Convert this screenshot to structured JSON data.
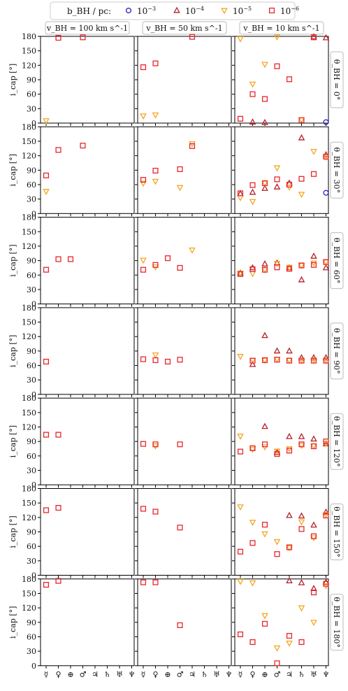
{
  "chart_data": {
    "type": "scatter",
    "legend": {
      "title": "b_BH / pc:",
      "placement": "top",
      "entries": [
        {
          "series": "1e-3",
          "marker": "circle",
          "color": "#1f1fbf",
          "label_base": "10",
          "label_exp": "−3"
        },
        {
          "series": "1e-4",
          "marker": "triangle-up",
          "color": "#b3222a",
          "label_base": "10",
          "label_exp": "−4"
        },
        {
          "series": "1e-5",
          "marker": "triangle-down",
          "color": "#f5a623",
          "label_base": "10",
          "label_exp": "−5"
        },
        {
          "series": "1e-6",
          "marker": "square",
          "color": "#e8262b",
          "label_base": "10",
          "label_exp": "−6"
        }
      ]
    },
    "column_headers": [
      "v_BH = 100 km s^-1",
      "v_BH = 50 km s^-1",
      "v_BH = 10 km s^-1"
    ],
    "row_labels": [
      "θ_BH = 0°",
      "θ_BH = 30°",
      "θ_BH = 60°",
      "θ_BH = 90°",
      "θ_BH = 120°",
      "θ_BH = 150°",
      "θ_BH = 180°"
    ],
    "ylabel": "i_cap [°]",
    "ylim": [
      0,
      180
    ],
    "yticks": [
      "0",
      "30",
      "60",
      "90",
      "120",
      "150",
      "180"
    ],
    "x_categories": [
      "☿",
      "♀",
      "⊕",
      "♂",
      "♃",
      "♄",
      "♅",
      "♆"
    ],
    "panels": [
      [
        {
          "1e-5": [
            [
              0,
              5
            ]
          ],
          "1e-6": [
            [
              1,
              177
            ],
            [
              3,
              178
            ]
          ]
        },
        {
          "1e-5": [
            [
              0,
              15
            ],
            [
              1,
              17
            ]
          ],
          "1e-6": [
            [
              0,
              116
            ],
            [
              1,
              124
            ],
            [
              4,
              179
            ]
          ]
        },
        {
          "1e-3": [
            [
              7,
              2
            ]
          ],
          "1e-4": [
            [
              1,
              2
            ],
            [
              2,
              1
            ],
            [
              6,
              179
            ],
            [
              7,
              177
            ]
          ],
          "1e-5": [
            [
              0,
              175
            ],
            [
              1,
              81
            ],
            [
              2,
              122
            ],
            [
              3,
              179
            ],
            [
              5,
              7
            ]
          ],
          "1e-6": [
            [
              0,
              9
            ],
            [
              1,
              60
            ],
            [
              2,
              50
            ],
            [
              3,
              118
            ],
            [
              4,
              91
            ],
            [
              5,
              6
            ],
            [
              6,
              178
            ]
          ]
        }
      ],
      [
        {
          "1e-5": [
            [
              0,
              46
            ]
          ],
          "1e-6": [
            [
              0,
              79
            ],
            [
              1,
              132
            ],
            [
              3,
              141
            ]
          ]
        },
        {
          "1e-5": [
            [
              0,
              63
            ],
            [
              1,
              67
            ],
            [
              3,
              54
            ],
            [
              4,
              145
            ]
          ],
          "1e-6": [
            [
              0,
              70
            ],
            [
              1,
              89
            ],
            [
              3,
              92
            ],
            [
              4,
              140
            ]
          ]
        },
        {
          "1e-3": [
            [
              7,
              43
            ]
          ],
          "1e-4": [
            [
              0,
              41
            ],
            [
              1,
              44
            ],
            [
              2,
              52
            ],
            [
              3,
              55
            ],
            [
              4,
              63
            ],
            [
              5,
              157
            ],
            [
              7,
              122
            ]
          ],
          "1e-5": [
            [
              0,
              33
            ],
            [
              1,
              25
            ],
            [
              2,
              63
            ],
            [
              3,
              95
            ],
            [
              4,
              55
            ],
            [
              5,
              40
            ],
            [
              6,
              129
            ],
            [
              7,
              117
            ]
          ],
          "1e-6": [
            [
              0,
              42
            ],
            [
              1,
              59
            ],
            [
              2,
              63
            ],
            [
              3,
              71
            ],
            [
              4,
              60
            ],
            [
              5,
              72
            ],
            [
              6,
              82
            ],
            [
              7,
              118
            ]
          ]
        }
      ],
      [
        {
          "1e-6": [
            [
              0,
              71
            ],
            [
              1,
              93
            ],
            [
              2,
              93
            ]
          ]
        },
        {
          "1e-5": [
            [
              0,
              91
            ],
            [
              1,
              77
            ],
            [
              4,
              112
            ]
          ],
          "1e-6": [
            [
              0,
              71
            ],
            [
              1,
              81
            ],
            [
              2,
              95
            ],
            [
              3,
              75
            ]
          ]
        },
        {
          "1e-4": [
            [
              0,
              64
            ],
            [
              1,
              75
            ],
            [
              2,
              83
            ],
            [
              3,
              85
            ],
            [
              4,
              75
            ],
            [
              5,
              50
            ],
            [
              6,
              99
            ],
            [
              7,
              75
            ]
          ],
          "1e-5": [
            [
              0,
              64
            ],
            [
              1,
              63
            ],
            [
              2,
              71
            ],
            [
              3,
              84
            ],
            [
              4,
              76
            ],
            [
              5,
              80
            ],
            [
              6,
              85
            ],
            [
              7,
              87
            ]
          ],
          "1e-6": [
            [
              0,
              62
            ],
            [
              1,
              72
            ],
            [
              2,
              71
            ],
            [
              3,
              76
            ],
            [
              4,
              73
            ],
            [
              5,
              80
            ],
            [
              6,
              81
            ],
            [
              7,
              87
            ]
          ]
        }
      ],
      [
        {
          "1e-6": [
            [
              0,
              68
            ]
          ]
        },
        {
          "1e-5": [
            [
              1,
              82
            ]
          ],
          "1e-6": [
            [
              0,
              73
            ],
            [
              1,
              71
            ],
            [
              2,
              68
            ],
            [
              3,
              72
            ]
          ]
        },
        {
          "1e-4": [
            [
              1,
              62
            ],
            [
              2,
              122
            ],
            [
              3,
              90
            ],
            [
              4,
              90
            ],
            [
              5,
              76
            ],
            [
              6,
              76
            ],
            [
              7,
              76
            ]
          ],
          "1e-5": [
            [
              0,
              79
            ],
            [
              1,
              71
            ],
            [
              2,
              71
            ],
            [
              3,
              73
            ],
            [
              4,
              71
            ],
            [
              5,
              71
            ],
            [
              6,
              72
            ],
            [
              7,
              71
            ]
          ],
          "1e-6": [
            [
              1,
              70
            ],
            [
              2,
              71
            ],
            [
              3,
              72
            ],
            [
              4,
              70
            ],
            [
              5,
              70
            ],
            [
              6,
              70
            ],
            [
              7,
              70
            ]
          ]
        }
      ],
      [
        {
          "1e-6": [
            [
              0,
              104
            ],
            [
              1,
              104
            ]
          ]
        },
        {
          "1e-5": [
            [
              1,
              81
            ]
          ],
          "1e-6": [
            [
              0,
              85
            ],
            [
              1,
              84
            ],
            [
              3,
              84
            ]
          ]
        },
        {
          "1e-4": [
            [
              2,
              121
            ],
            [
              3,
              67
            ],
            [
              4,
              100
            ],
            [
              5,
              100
            ],
            [
              6,
              95
            ],
            [
              7,
              85
            ]
          ],
          "1e-5": [
            [
              0,
              101
            ],
            [
              1,
              74
            ],
            [
              2,
              79
            ],
            [
              3,
              70
            ],
            [
              4,
              75
            ],
            [
              5,
              82
            ],
            [
              6,
              81
            ],
            [
              7,
              86
            ]
          ],
          "1e-6": [
            [
              0,
              69
            ],
            [
              1,
              76
            ],
            [
              2,
              84
            ],
            [
              3,
              64
            ],
            [
              4,
              71
            ],
            [
              5,
              84
            ],
            [
              6,
              80
            ],
            [
              7,
              90
            ]
          ]
        }
      ],
      [
        {
          "1e-6": [
            [
              0,
              135
            ],
            [
              1,
              140
            ]
          ]
        },
        {
          "1e-6": [
            [
              0,
              138
            ],
            [
              1,
              132
            ],
            [
              3,
              99
            ]
          ]
        },
        {
          "1e-4": [
            [
              4,
              124
            ],
            [
              5,
              123
            ],
            [
              6,
              104
            ],
            [
              7,
              131
            ]
          ],
          "1e-5": [
            [
              0,
              142
            ],
            [
              1,
              110
            ],
            [
              2,
              86
            ],
            [
              3,
              70
            ],
            [
              4,
              57
            ],
            [
              5,
              111
            ],
            [
              6,
              78
            ],
            [
              7,
              126
            ]
          ],
          "1e-6": [
            [
              0,
              49
            ],
            [
              1,
              67
            ],
            [
              2,
              105
            ],
            [
              3,
              44
            ],
            [
              4,
              58
            ],
            [
              5,
              96
            ],
            [
              6,
              81
            ],
            [
              7,
              124
            ]
          ]
        }
      ],
      [
        {
          "1e-6": [
            [
              0,
              168
            ],
            [
              1,
              176
            ]
          ]
        },
        {
          "1e-6": [
            [
              0,
              173
            ],
            [
              1,
              173
            ],
            [
              3,
              84
            ]
          ]
        },
        {
          "1e-4": [
            [
              4,
              176
            ],
            [
              5,
              172
            ],
            [
              6,
              160
            ],
            [
              7,
              173
            ]
          ],
          "1e-5": [
            [
              0,
              175
            ],
            [
              1,
              172
            ],
            [
              2,
              104
            ],
            [
              3,
              37
            ],
            [
              4,
              47
            ],
            [
              5,
              120
            ],
            [
              6,
              90
            ],
            [
              7,
              166
            ]
          ],
          "1e-6": [
            [
              0,
              65
            ],
            [
              1,
              49
            ],
            [
              2,
              87
            ],
            [
              3,
              5
            ],
            [
              4,
              62
            ],
            [
              5,
              49
            ],
            [
              6,
              152
            ],
            [
              7,
              170
            ]
          ]
        }
      ]
    ]
  }
}
